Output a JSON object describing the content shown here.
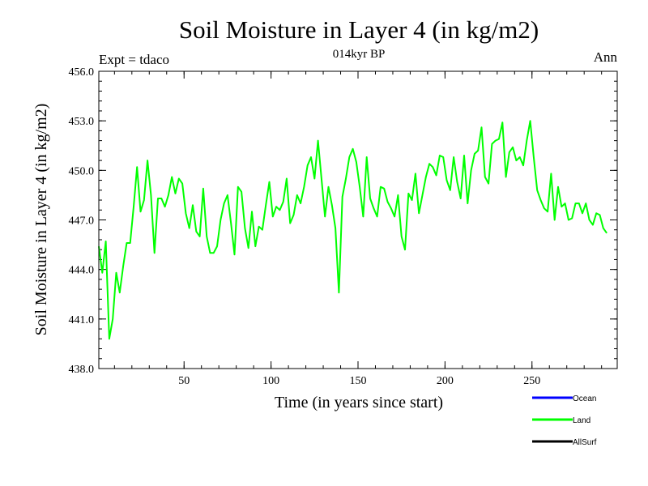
{
  "chart_data": {
    "type": "line",
    "title": "Soil Moisture in Layer 4 (in kg/m2)",
    "subtitle": "014kyr BP",
    "left_note": "Expt = tdaco",
    "right_note": "Ann",
    "xlabel": "Time (in years since start)",
    "ylabel": "Soil Moisture in Layer 4 (in kg/m2)",
    "xlim": [
      1,
      299
    ],
    "ylim": [
      438.0,
      456.0
    ],
    "x_ticks": [
      50,
      100,
      150,
      200,
      250
    ],
    "x_tick_labels": [
      "50",
      "100",
      "150",
      "200",
      "250"
    ],
    "y_ticks": [
      438.0,
      441.0,
      444.0,
      447.0,
      450.0,
      453.0,
      456.0
    ],
    "y_tick_labels": [
      "438.0",
      "441.0",
      "444.0",
      "447.0",
      "450.0",
      "453.0",
      "456.0"
    ],
    "legend": [
      {
        "name": "Ocean",
        "color": "#0000ff"
      },
      {
        "name": "Land",
        "color": "#00ff00"
      },
      {
        "name": "AllSurf",
        "color": "#000000"
      }
    ],
    "series": [
      {
        "name": "Land",
        "color": "#00ff00",
        "x_start": 1,
        "x_step": 2,
        "values": [
          445.4,
          443.8,
          445.7,
          439.8,
          441.0,
          443.8,
          442.6,
          444.2,
          445.6,
          445.6,
          447.8,
          450.2,
          447.5,
          448.2,
          450.6,
          448.5,
          445.0,
          448.3,
          448.3,
          447.8,
          448.5,
          449.6,
          448.6,
          449.5,
          449.2,
          447.4,
          446.5,
          447.9,
          446.3,
          446.0,
          448.9,
          446.0,
          445.0,
          445.0,
          445.4,
          447.0,
          448.0,
          448.5,
          446.8,
          444.9,
          449.0,
          448.7,
          446.5,
          445.3,
          447.5,
          445.4,
          446.6,
          446.4,
          447.9,
          449.3,
          447.2,
          447.8,
          447.6,
          448.1,
          449.5,
          446.8,
          447.3,
          448.5,
          448.0,
          449.0,
          450.3,
          450.8,
          449.5,
          451.8,
          449.5,
          447.2,
          449.0,
          447.9,
          446.5,
          442.6,
          448.4,
          449.5,
          450.8,
          451.3,
          450.5,
          449.0,
          447.2,
          450.8,
          448.3,
          447.7,
          447.2,
          449.0,
          448.9,
          448.1,
          447.7,
          447.2,
          448.5,
          446.0,
          445.2,
          448.6,
          448.2,
          449.8,
          447.4,
          448.5,
          449.6,
          450.4,
          450.2,
          449.7,
          450.9,
          450.8,
          449.4,
          448.8,
          450.8,
          449.3,
          448.3,
          450.9,
          448.0,
          450.0,
          451.0,
          451.2,
          452.6,
          449.6,
          449.2,
          451.6,
          451.8,
          451.9,
          452.9,
          449.6,
          451.1,
          451.4,
          450.6,
          450.8,
          450.3,
          451.8,
          453.0,
          450.8,
          448.8,
          448.2,
          447.7,
          447.5,
          449.8,
          447.0,
          449.0,
          447.8,
          448.0,
          447.0,
          447.1,
          448.0,
          448.0,
          447.4,
          448.0,
          447.0,
          446.7,
          447.4,
          447.3,
          446.5,
          446.2
        ]
      }
    ]
  }
}
